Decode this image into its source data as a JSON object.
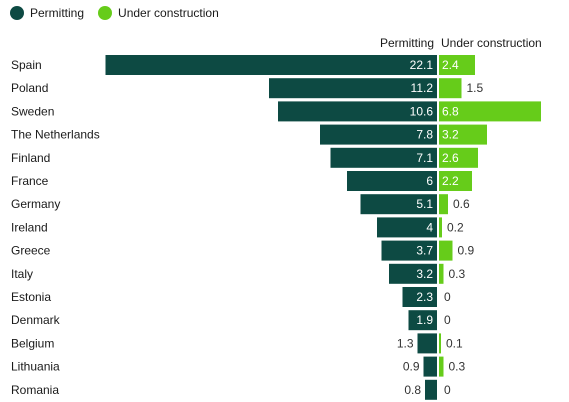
{
  "legend": [
    {
      "label": "Permitting",
      "color": "#0d4a43"
    },
    {
      "label": "Under construction",
      "color": "#66cc1a"
    }
  ],
  "headers": {
    "left": "Permitting",
    "right": "Under construction"
  },
  "chart_data": {
    "type": "bar",
    "orientation": "horizontal",
    "categories": [
      "Spain",
      "Poland",
      "Sweden",
      "The Netherlands",
      "Finland",
      "France",
      "Germany",
      "Ireland",
      "Greece",
      "Italy",
      "Estonia",
      "Denmark",
      "Belgium",
      "Lithuania",
      "Romania"
    ],
    "series": [
      {
        "name": "Permitting",
        "color": "#0d4a43",
        "direction": "left",
        "values": [
          22.1,
          11.2,
          10.6,
          7.8,
          7.1,
          6,
          5.1,
          4,
          3.7,
          3.2,
          2.3,
          1.9,
          1.3,
          0.9,
          0.8
        ],
        "labels": [
          "22.1",
          "11.2",
          "10.6",
          "7.8",
          "7.1",
          "6",
          "5.1",
          "4",
          "3.7",
          "3.2",
          "2.3",
          "1.9",
          "1.3",
          "0.9",
          "0.8"
        ]
      },
      {
        "name": "Under construction",
        "color": "#66cc1a",
        "direction": "right",
        "values": [
          2.4,
          1.5,
          6.8,
          3.2,
          2.6,
          2.2,
          0.6,
          0.2,
          0.9,
          0.3,
          0,
          0,
          0.1,
          0.3,
          0
        ],
        "labels": [
          "2.4",
          "1.5",
          "6.8",
          "3.2",
          "2.6",
          "2.2",
          "0.6",
          "0.2",
          "0.9",
          "0.3",
          "0",
          "0",
          "0.1",
          "0.3",
          "0"
        ]
      }
    ],
    "legend_position": "top-left",
    "grid": false
  }
}
